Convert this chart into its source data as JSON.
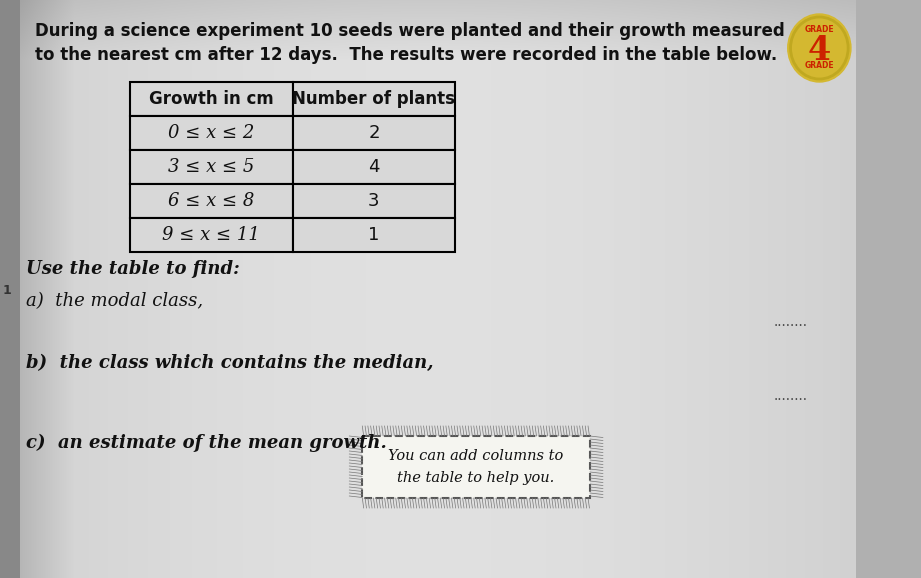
{
  "title_line1": "During a science experiment 10 seeds were planted and their growth measured",
  "title_line2": "to the nearest cm after 12 days.  The results were recorded in the table below.",
  "table_headers": [
    "Growth in cm",
    "Number of plants"
  ],
  "table_rows": [
    [
      "0 ≤ x ≤ 2",
      "2"
    ],
    [
      "3 ≤ x ≤ 5",
      "4"
    ],
    [
      "6 ≤ x ≤ 8",
      "3"
    ],
    [
      "9 ≤ x ≤ 11",
      "1"
    ]
  ],
  "use_text": "Use the table to find:",
  "q_a": "a)  the modal class,",
  "q_b": "b)  the class which contains the median,",
  "q_c": "c)  an estimate of the mean growth.",
  "note_line1": "You can add columns to",
  "note_line2": "the table to help you.",
  "grade_number": "4",
  "bg_color": "#b0b0b0",
  "page_light": "#dcdcdc",
  "page_mid": "#c8c8c8",
  "table_bg": "#d8d8d8",
  "header_bg": "#c0c0c0",
  "text_color": "#111111",
  "dots_color": "#444444",
  "grade_circle_color": "#d4b830",
  "grade_text_color": "#cc2200",
  "grade_inner_color": "#c0a820"
}
